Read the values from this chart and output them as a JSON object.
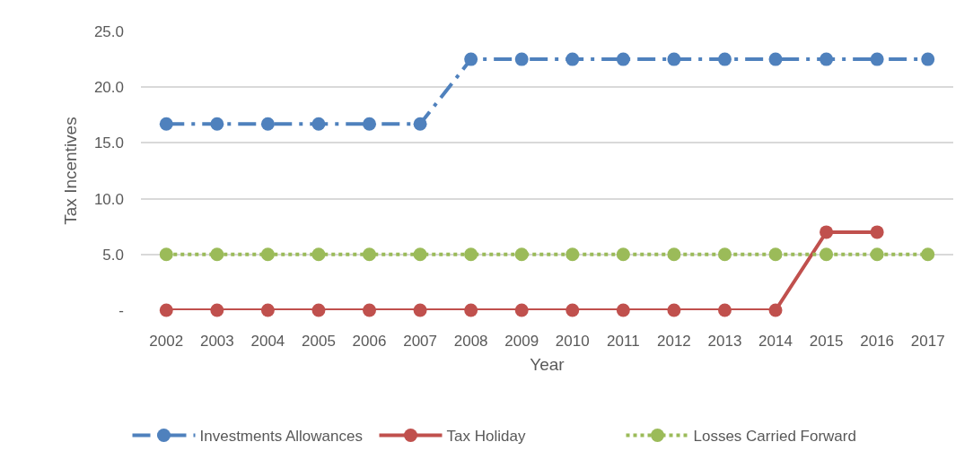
{
  "chart_data": {
    "type": "line",
    "xlabel": "Year",
    "ylabel": "Tax Incentives",
    "categories": [
      "2002",
      "2003",
      "2004",
      "2005",
      "2006",
      "2007",
      "2008",
      "2009",
      "2010",
      "2011",
      "2012",
      "2013",
      "2014",
      "2015",
      "2016",
      "2017"
    ],
    "series": [
      {
        "name": "Investments Allowances",
        "color": "#4f81bd",
        "line_style": "dashed",
        "values": [
          16.7,
          16.7,
          16.7,
          16.7,
          16.7,
          16.7,
          22.5,
          22.5,
          22.5,
          22.5,
          22.5,
          22.5,
          22.5,
          22.5,
          22.5,
          22.5
        ]
      },
      {
        "name": "Tax Holiday",
        "color": "#c0504d",
        "line_style": "solid",
        "values": [
          0,
          0,
          0,
          0,
          0,
          0,
          0,
          0,
          0,
          0,
          0,
          0,
          0,
          7.0,
          7.0,
          null
        ]
      },
      {
        "name": "Losses Carried Forward",
        "color": "#9bbb59",
        "line_style": "dotted",
        "values": [
          5,
          5,
          5,
          5,
          5,
          5,
          5,
          5,
          5,
          5,
          5,
          5,
          5,
          5,
          5,
          5
        ]
      }
    ],
    "ylim": [
      0,
      25
    ],
    "yticks": [
      {
        "value": 0,
        "label": "-"
      },
      {
        "value": 5,
        "label": "5.0"
      },
      {
        "value": 10,
        "label": "10.0"
      },
      {
        "value": 15,
        "label": "15.0"
      },
      {
        "value": 20,
        "label": "20.0"
      },
      {
        "value": 25,
        "label": "25.0"
      }
    ],
    "grid": "y",
    "legend": "bottom",
    "marker": "circle"
  }
}
